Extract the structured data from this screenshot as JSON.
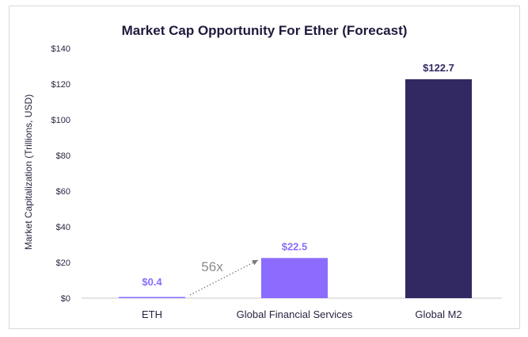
{
  "chart_data": {
    "type": "bar",
    "title": "Market Cap Opportunity For Ether (Forecast)",
    "xlabel": "",
    "ylabel": "Market Capitalization (Trillions, USD)",
    "ylim": [
      0,
      140
    ],
    "yticks": [
      "$0",
      "$20",
      "$40",
      "$60",
      "$80",
      "$100",
      "$120",
      "$140"
    ],
    "categories": [
      "ETH",
      "Global Financial Services",
      "Global M2"
    ],
    "values": [
      0.4,
      22.5,
      122.7
    ],
    "data_labels": [
      "$0.4",
      "$22.5",
      "$122.7"
    ],
    "bar_colors": [
      "#8b6cff",
      "#8b6cff",
      "#322862"
    ],
    "label_colors": [
      "#8b6cff",
      "#8b6cff",
      "#322862"
    ],
    "annotation": {
      "text": "56x",
      "from": "ETH",
      "to": "Global Financial Services"
    },
    "grid": false,
    "legend": "none"
  }
}
